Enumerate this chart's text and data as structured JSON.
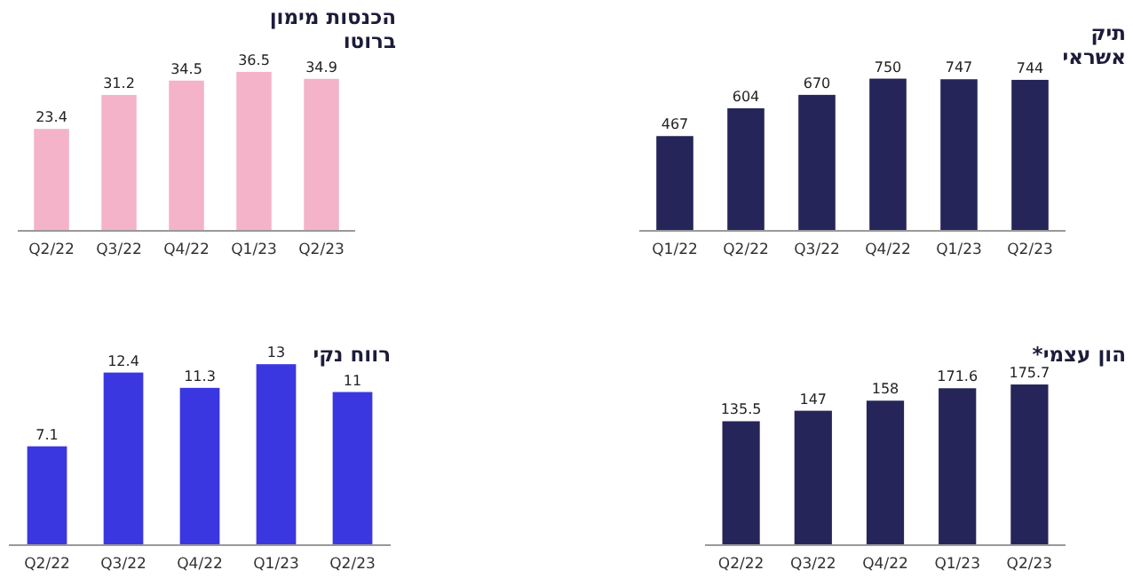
{
  "chart_data": [
    {
      "type": "bar",
      "title": "הכנסות מימון\nברוטו",
      "categories": [
        "Q2/22",
        "Q3/22",
        "Q4/22",
        "Q1/23",
        "Q2/23"
      ],
      "series": [
        {
          "color": "#f4b3c9",
          "values": [
            23.4,
            31.2,
            34.5,
            36.5,
            34.9
          ]
        }
      ],
      "data_labels": true,
      "tick_labels": "x"
    },
    {
      "type": "bar",
      "title": "תיק\nאשראי",
      "categories": [
        "Q1/22",
        "Q2/22",
        "Q3/22",
        "Q4/22",
        "Q1/23",
        "Q2/23"
      ],
      "series": [
        {
          "color": "#262559",
          "values": [
            467,
            604,
            670,
            750,
            747,
            744
          ]
        }
      ],
      "data_labels": true,
      "tick_labels": "x"
    },
    {
      "type": "bar",
      "title": "רווח נקי",
      "categories": [
        "Q2/22",
        "Q3/22",
        "Q4/22",
        "Q1/23",
        "Q2/23"
      ],
      "series": [
        {
          "color": "#3b37e0",
          "values": [
            7.1,
            12.4,
            11.3,
            13,
            11
          ]
        }
      ],
      "data_labels": true,
      "tick_labels": "x"
    },
    {
      "type": "bar",
      "title": "*הון עצמי",
      "categories": [
        "Q2/22",
        "Q3/22",
        "Q4/22",
        "Q1/23",
        "Q2/23"
      ],
      "series": [
        {
          "color": "#262559",
          "values": [
            135.5,
            147,
            158,
            171.6,
            175.7
          ]
        }
      ],
      "data_labels": true,
      "tick_labels": "x"
    }
  ]
}
